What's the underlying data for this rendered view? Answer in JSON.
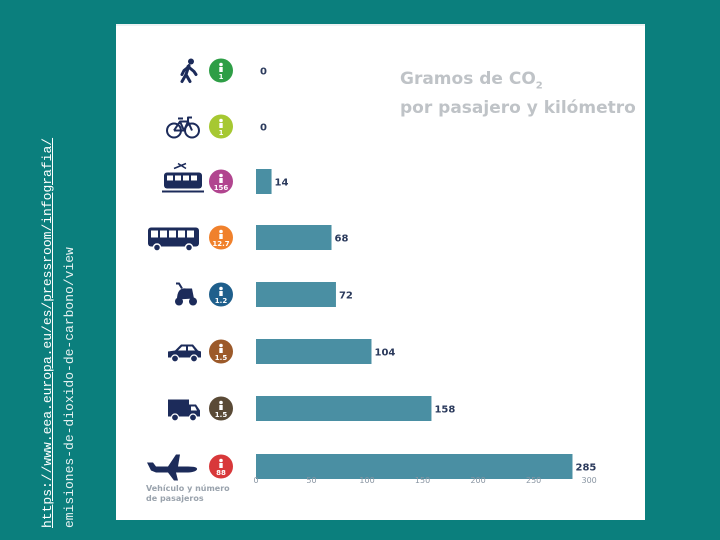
{
  "source_note": {
    "line1": "https://www.eea.europa.eu/es/pressroom/infografia/",
    "line2": "emisiones-de-dioxido-de-carbono/view"
  },
  "chart_data": {
    "type": "bar",
    "orientation": "horizontal",
    "title_main": "Gramos de CO",
    "title_sub": "2",
    "title_line2": "por pasajero y kilómetro",
    "category_axis_label": "Vehículo y número de pasajeros",
    "category_axis_label_lines": [
      "Vehículo y número",
      "de pasajeros"
    ],
    "categories": [
      {
        "icon": "walker-icon",
        "passengers": "1",
        "badge_color": "#2e9e46",
        "value": 0
      },
      {
        "icon": "bicycle-icon",
        "passengers": "1",
        "badge_color": "#a6c832",
        "value": 0
      },
      {
        "icon": "train-icon",
        "passengers": "156",
        "badge_color": "#b1458f",
        "value": 14
      },
      {
        "icon": "bus-icon",
        "passengers": "12.7",
        "badge_color": "#f0812c",
        "value": 68
      },
      {
        "icon": "scooter-icon",
        "passengers": "1.2",
        "badge_color": "#1f5f8c",
        "value": 72
      },
      {
        "icon": "car-icon",
        "passengers": "1.5",
        "badge_color": "#9c5a2a",
        "value": 104
      },
      {
        "icon": "van-icon",
        "passengers": "1.5",
        "badge_color": "#5a4a36",
        "value": 158
      },
      {
        "icon": "airplane-icon",
        "passengers": "88",
        "badge_color": "#d8383a",
        "value": 285
      }
    ],
    "x_ticks": [
      "0",
      "50",
      "100",
      "150",
      "200",
      "250",
      "300"
    ],
    "xlim": [
      0,
      300
    ],
    "bar_color": "#4a8fa3",
    "icon_color": "#1c2b5a",
    "label_color": "#2b3a5c",
    "grid": false
  }
}
